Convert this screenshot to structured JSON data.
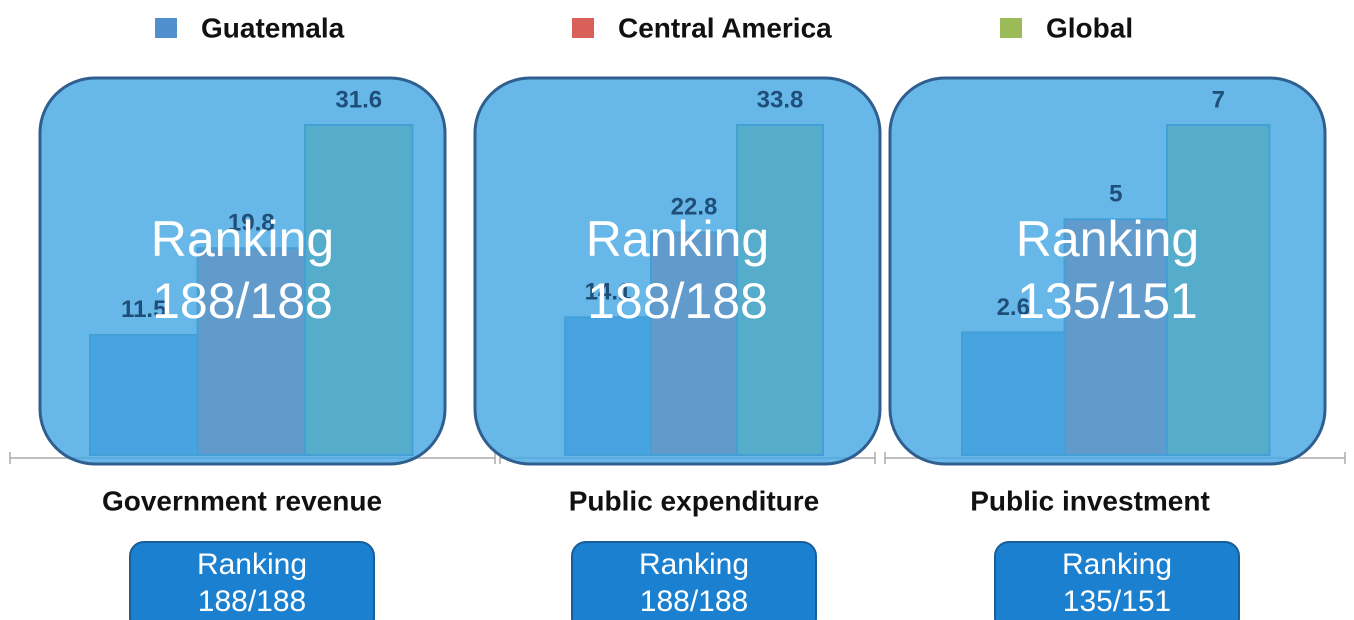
{
  "legend": [
    {
      "name": "Guatemala",
      "color": "#4f8fd0"
    },
    {
      "name": "Central America",
      "color": "#d9605a"
    },
    {
      "name": "Global",
      "color": "#9bbb59"
    }
  ],
  "chart_data": [
    {
      "type": "bar",
      "title": "Government revenue",
      "values": [
        11.5,
        19.8,
        31.6
      ],
      "annotation": [
        "Ranking",
        "188/188"
      ]
    },
    {
      "type": "bar",
      "title": "Public expenditure",
      "values": [
        14.1,
        22.8,
        33.8
      ],
      "annotation": [
        "Ranking",
        "188/188"
      ]
    },
    {
      "type": "bar",
      "title": "Public investment",
      "values": [
        2.6,
        5.0,
        7.0
      ],
      "annotation": [
        "Ranking",
        "135/151"
      ]
    }
  ]
}
